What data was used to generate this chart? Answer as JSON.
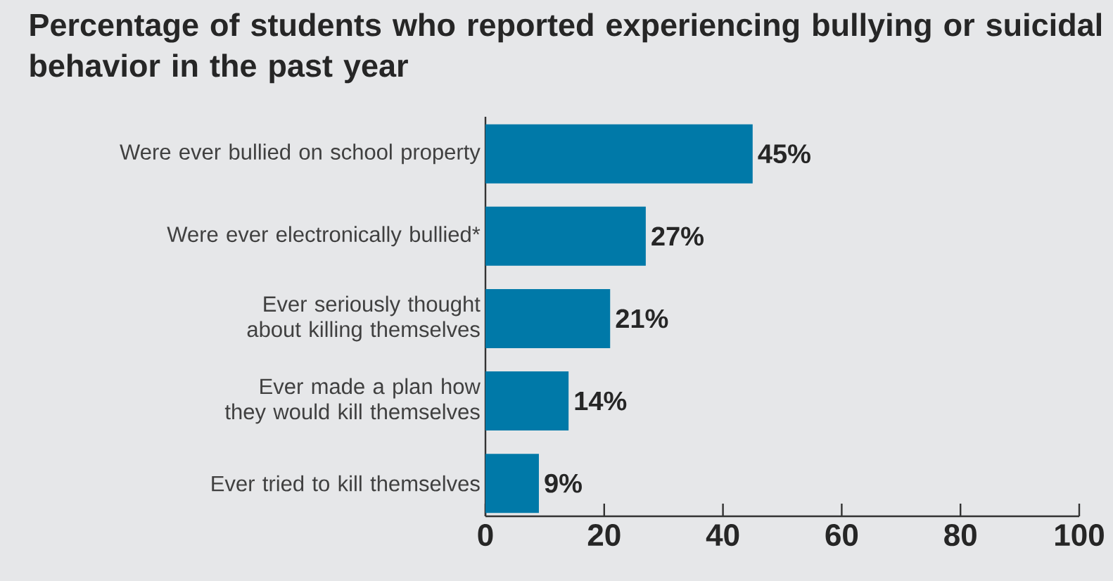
{
  "chart_data": {
    "type": "bar",
    "orientation": "horizontal",
    "title": "Percentage of students who reported experiencing bullying or suicidal behavior in the past year",
    "categories": [
      "Were ever bullied on school property",
      "Were ever electronically bullied*",
      "Ever seriously thought about killing themselves",
      "Ever made a plan how they would kill themselves",
      "Ever tried to kill themselves"
    ],
    "values": [
      45,
      27,
      21,
      14,
      9
    ],
    "value_labels": [
      "45%",
      "27%",
      "21%",
      "14%",
      "9%"
    ],
    "color": "#0079a8",
    "xlim": [
      0,
      100
    ],
    "xticks": [
      0,
      20,
      40,
      60,
      80,
      100
    ]
  }
}
